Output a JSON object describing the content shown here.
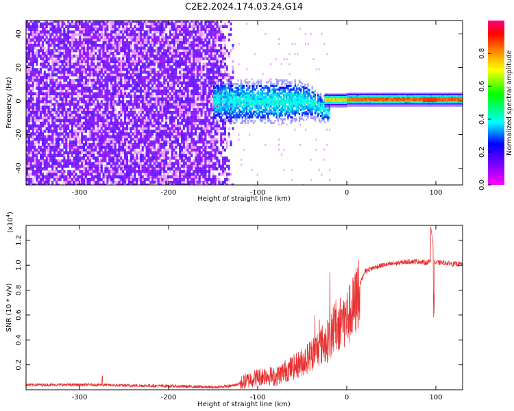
{
  "title": "C2E2.2024.174.03.24.G14",
  "chart_data": [
    {
      "type": "heatmap",
      "xlabel": "Height of straight line (km)",
      "ylabel": "Frequency (Hz)",
      "xlim": [
        -360,
        130
      ],
      "ylim": [
        -50,
        48
      ],
      "x_ticks": [
        -300,
        -200,
        -100,
        0,
        100
      ],
      "x_tick_labels": [
        "-300",
        "-200",
        "-100",
        "0",
        "100"
      ],
      "y_ticks": [
        -40,
        -20,
        0,
        20,
        40
      ],
      "y_tick_labels": [
        "-40",
        "-20",
        "0",
        "20",
        "40"
      ],
      "colorbar": {
        "label": "Normalized spectral amplitude",
        "range": [
          0,
          1
        ],
        "ticks": [
          0.0,
          0.2,
          0.4,
          0.6,
          0.8
        ],
        "tick_labels": [
          "0.0",
          "0.2",
          "0.4",
          "0.6",
          "0.8"
        ],
        "colors": [
          "#ff00ff",
          "#8000ff",
          "#0000ff",
          "#00ffff",
          "#00ff00",
          "#ffff00",
          "#ff8000",
          "#ff0000",
          "#ff0080"
        ]
      },
      "regions": [
        {
          "x_range": [
            -360,
            -128
          ],
          "freq_range": [
            -50,
            48
          ],
          "amplitude": 0.15,
          "description_colors": [
            "#6010ff",
            "#c8a0ff"
          ]
        },
        {
          "x_range": [
            -150,
            -25
          ],
          "freq_range": [
            -12,
            12
          ],
          "amplitude": 0.35
        },
        {
          "x_range": [
            -25,
            130
          ],
          "freq_range": [
            -2,
            2
          ],
          "amplitude": 0.85
        }
      ]
    },
    {
      "type": "line",
      "xlabel": "Height of straight line (km)",
      "ylabel": "SNR (10 * v/v)",
      "scale_label": "(x10",
      "scale_exponent": "4",
      "scale_close": ")",
      "xlim": [
        -360,
        130
      ],
      "ylim": [
        0,
        1.32
      ],
      "x_ticks": [
        -300,
        -200,
        -100,
        0,
        100
      ],
      "x_tick_labels": [
        "-300",
        "-200",
        "-100",
        "0",
        "100"
      ],
      "y_ticks": [
        0.2,
        0.4,
        0.6,
        0.8,
        1.0,
        1.2
      ],
      "y_tick_labels": [
        "0.2",
        "0.4",
        "0.6",
        "0.8",
        "1.0",
        "1.2"
      ],
      "color": "#e83030",
      "series": [
        {
          "x": [
            -360,
            -300,
            -280,
            -250,
            -200,
            -150,
            -130,
            -120,
            -110,
            -100,
            -90,
            -80,
            -70,
            -60,
            -50,
            -40,
            -30,
            -20,
            -15,
            -10,
            -5,
            0,
            5,
            10,
            15,
            20,
            30,
            40,
            50,
            60,
            70,
            80,
            90,
            95,
            100,
            110,
            120,
            130
          ],
          "values": [
            0.04,
            0.04,
            0.04,
            0.035,
            0.03,
            0.02,
            0.03,
            0.05,
            0.08,
            0.1,
            0.12,
            0.1,
            0.15,
            0.18,
            0.22,
            0.28,
            0.35,
            0.4,
            0.5,
            0.52,
            0.55,
            0.58,
            0.62,
            0.7,
            0.85,
            0.95,
            0.98,
            1.0,
            1.01,
            1.02,
            1.03,
            1.03,
            1.02,
            1.04,
            1.02,
            1.02,
            1.01,
            1.01
          ]
        }
      ]
    }
  ]
}
